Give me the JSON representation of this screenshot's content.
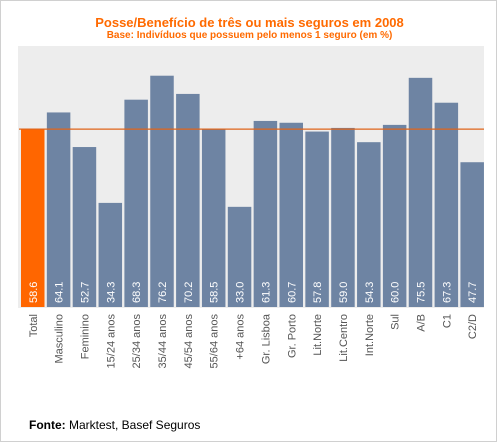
{
  "title": "Posse/Benefício de três ou mais seguros em 2008",
  "subtitle": "Base: Indivíduos  que possuem  pelo menos  1 seguro  (em %)",
  "source": {
    "label": "Fonte:",
    "text": " Marktest, Basef Seguros"
  },
  "colors": {
    "highlight_bar": "#ff6600",
    "bar": "#6e84a3",
    "reference_line": "#e0651a",
    "plot_background": "#ededed",
    "value_label": "#ffffff",
    "category_label": "#555555",
    "title": "#ff6a00"
  },
  "chart_data": {
    "type": "bar",
    "categories": [
      "Total",
      "Masculino",
      "Feminino",
      "15/24 anos",
      "25/34 anos",
      "35/44 anos",
      "45/54 anos",
      "55/64 anos",
      "+64 anos",
      "Gr. Lisboa",
      "Gr. Porto",
      "Lit.Norte",
      "Lit.Centro",
      "Int.Norte",
      "Sul",
      "A/B",
      "C1",
      "C2/D"
    ],
    "value_labels": [
      "58.6",
      "64.1",
      "52.7",
      "34.3",
      "68.3",
      "76.2",
      "70.2",
      "58.5",
      "33.0",
      "61.3",
      "60.7",
      "57.8",
      "59.0",
      "54.3",
      "60.0",
      "75.5",
      "67.3",
      "47.7"
    ],
    "values": [
      58.6,
      64.1,
      52.7,
      34.3,
      68.3,
      76.2,
      70.2,
      58.5,
      33.0,
      61.3,
      60.7,
      57.8,
      59.0,
      54.3,
      60.0,
      75.5,
      67.3,
      47.7
    ],
    "highlight_index": 0,
    "reference_line": 58.6,
    "ylim": [
      0,
      85
    ],
    "grid": false,
    "legend": "none",
    "title": "Posse/Benefício de três ou mais seguros em 2008",
    "xlabel": "",
    "ylabel": ""
  }
}
